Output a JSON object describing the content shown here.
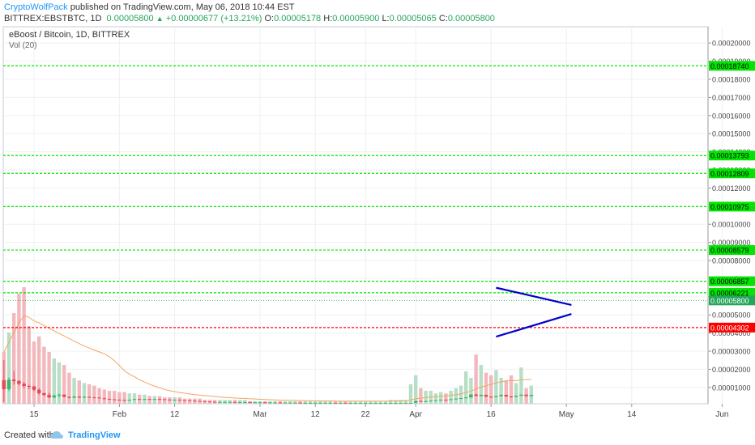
{
  "header": {
    "author": "CryptoWolfPack",
    "published": " published on TradingView.com, May 06, 2018 10:44 EST",
    "symbol": "BITTREX:EBSTBTC, 1D",
    "last": "0.00005800",
    "change": "+0.00000677 (+13.21%)",
    "o_label": "O:",
    "o_val": "0.00005178",
    "h_label": "H:",
    "h_val": "0.00005900",
    "l_label": "L:",
    "l_val": "0.00005065",
    "c_label": "C:",
    "c_val": "0.00005800"
  },
  "legend": {
    "title": "eBoost / Bitcoin, 1D, BITTREX",
    "volume": "Vol (20)"
  },
  "footer": {
    "created": "Created with",
    "brand": "TradingView"
  },
  "chart_data": {
    "type": "candlestick",
    "ylim": [
      1e-07,
      2.09e-05
    ],
    "y_ticks": [
      "0.00020000",
      "0.00019000",
      "0.00018000",
      "0.00017000",
      "0.00016000",
      "0.00015000",
      "0.00014000",
      "0.00013000",
      "0.00012000",
      "0.00011000",
      "0.00010000",
      "0.00009000",
      "0.00008000",
      "0.00007000",
      "0.00006000",
      "0.00005000",
      "0.00004000",
      "0.00003000",
      "0.00002000",
      "0.00001000"
    ],
    "y_tick_values": [
      0.0002,
      0.00019,
      0.00018,
      0.00017,
      0.00016,
      0.00015,
      0.00014,
      0.00013,
      0.00012,
      0.00011,
      0.0001,
      9e-05,
      8e-05,
      7e-05,
      6e-05,
      5e-05,
      4e-05,
      3e-05,
      2e-05,
      1e-05
    ],
    "x_ticks": [
      {
        "label": "15",
        "day": 0
      },
      {
        "label": "Feb",
        "day": 17
      },
      {
        "label": "12",
        "day": 28
      },
      {
        "label": "Mar",
        "day": 45
      },
      {
        "label": "12",
        "day": 56
      },
      {
        "label": "22",
        "day": 66
      },
      {
        "label": "Apr",
        "day": 76
      },
      {
        "label": "16",
        "day": 91
      },
      {
        "label": "May",
        "day": 106
      },
      {
        "label": "14",
        "day": 119
      },
      {
        "label": "Jun",
        "day": 137
      }
    ],
    "horizontal_levels": [
      {
        "value": 0.0001874,
        "label": "0.00018740",
        "color": "#00e600"
      },
      {
        "value": 0.00013793,
        "label": "0.00013793",
        "color": "#00e600"
      },
      {
        "value": 0.00012809,
        "label": "0.00012809",
        "color": "#00e600"
      },
      {
        "value": 0.00010975,
        "label": "0.00010975",
        "color": "#00e600"
      },
      {
        "value": 8.579e-05,
        "label": "0.00008579",
        "color": "#00e600"
      },
      {
        "value": 6.857e-05,
        "label": "0.00006857",
        "color": "#00e600"
      },
      {
        "value": 6.221e-05,
        "label": "0.00006221",
        "color": "#00e600"
      },
      {
        "value": 4.302e-05,
        "label": "0.00004302",
        "color": "#ff0000"
      }
    ],
    "last_price": {
      "value": 5.8e-05,
      "label": "0.00005800",
      "color": "#26a65b"
    },
    "triangle": {
      "upper": [
        [
          92,
          6.5e-05
        ],
        [
          107,
          5.55e-05
        ]
      ],
      "lower": [
        [
          92,
          3.8e-05
        ],
        [
          107,
          5.05e-05
        ]
      ],
      "color": "#0000cc"
    },
    "first_day": -6,
    "candles": [
      [
        1.4e-05,
        2.5e-05,
        2e-06,
        9e-06
      ],
      [
        9e-06,
        1.55e-05,
        8e-06,
        1.43e-05
      ],
      [
        1.43e-05,
        1.9e-05,
        1.15e-05,
        1.35e-05
      ],
      [
        1.35e-05,
        1.42e-05,
        1.12e-05,
        1.2e-05
      ],
      [
        1.2e-05,
        1.3e-05,
        9.5e-06,
        1.08e-05
      ],
      [
        1.08e-05,
        1.15e-05,
        9e-06,
        1.05e-05
      ],
      [
        1.05e-05,
        1.1e-05,
        8e-06,
        8.7e-06
      ],
      [
        8.7e-06,
        9.5e-06,
        6e-06,
        6.8e-06
      ],
      [
        6.8e-06,
        7.2e-06,
        5.5e-06,
        5.8e-06
      ],
      [
        5.8e-06,
        7e-06,
        4e-06,
        4.5e-06
      ],
      [
        4.5e-06,
        6e-06,
        4e-06,
        5.5e-06
      ],
      [
        5.5e-06,
        6.5e-06,
        4.5e-06,
        6e-06
      ],
      [
        6e-06,
        6.2e-06,
        4.5e-06,
        4.8e-06
      ],
      [
        4.8e-06,
        5e-06,
        4e-06,
        4.3e-06
      ],
      [
        4.3e-06,
        5.2e-06,
        4.1e-06,
        4.9e-06
      ],
      [
        4.9e-06,
        5.1e-06,
        4.2e-06,
        4.4e-06
      ],
      [
        4.4e-06,
        5e-06,
        4.2e-06,
        4.8e-06
      ],
      [
        4.8e-06,
        5e-06,
        4.3e-06,
        4.5e-06
      ],
      [
        4.5e-06,
        4.7e-06,
        4.2e-06,
        4.4e-06
      ],
      [
        4.4e-06,
        4.6e-06,
        3.9e-06,
        4e-06
      ],
      [
        4e-06,
        4.2e-06,
        3.6e-06,
        3.7e-06
      ],
      [
        3.7e-06,
        3.8e-06,
        3.3e-06,
        3.4e-06
      ],
      [
        3.4e-06,
        3.6e-06,
        3.1e-06,
        3.2e-06
      ],
      [
        3.2e-06,
        3.4e-06,
        3e-06,
        3.1e-06
      ],
      [
        3.1e-06,
        3.3e-06,
        2.9e-06,
        3e-06
      ],
      [
        3e-06,
        3.3e-06,
        2.9e-06,
        3.2e-06
      ],
      [
        3.2e-06,
        3.7e-06,
        3.1e-06,
        3.6e-06
      ],
      [
        3.6e-06,
        3.7e-06,
        3.2e-06,
        3.3e-06
      ],
      [
        3.3e-06,
        3.7e-06,
        3.2e-06,
        3.6e-06
      ],
      [
        3.6e-06,
        3.7e-06,
        3.3e-06,
        3.4e-06
      ],
      [
        3.4e-06,
        3.7e-06,
        3.3e-06,
        3.6e-06
      ],
      [
        3.6e-06,
        3.8e-06,
        3.4e-06,
        3.5e-06
      ],
      [
        3.5e-06,
        3.6e-06,
        3.2e-06,
        3.3e-06
      ],
      [
        3.3e-06,
        3.4e-06,
        3e-06,
        3.1e-06
      ],
      [
        3.1e-06,
        3.3e-06,
        3e-06,
        3.2e-06
      ],
      [
        3.2e-06,
        3.3e-06,
        2.9e-06,
        3e-06
      ],
      [
        3e-06,
        3.1e-06,
        2.8e-06,
        2.9e-06
      ],
      [
        2.9e-06,
        3e-06,
        2.6e-06,
        2.7e-06
      ],
      [
        2.7e-06,
        2.8e-06,
        2.4e-06,
        2.5e-06
      ],
      [
        2.5e-06,
        2.6e-06,
        2.3e-06,
        2.4e-06
      ],
      [
        2.4e-06,
        2.5e-06,
        2.1e-06,
        2.2e-06
      ],
      [
        2.2e-06,
        2.3e-06,
        2e-06,
        2.1e-06
      ],
      [
        2.1e-06,
        2.2e-06,
        1.9e-06,
        2e-06
      ],
      [
        2e-06,
        2.1e-06,
        1.9e-06,
        2e-06
      ],
      [
        2e-06,
        2.1e-06,
        1.9e-06,
        2e-06
      ],
      [
        2e-06,
        2.1e-06,
        1.9e-06,
        2e-06
      ],
      [
        2e-06,
        2.1e-06,
        1.8e-06,
        1.9e-06
      ],
      [
        1.9e-06,
        2e-06,
        1.8e-06,
        1.9e-06
      ],
      [
        1.9e-06,
        2e-06,
        1.8e-06,
        1.9e-06
      ],
      [
        1.9e-06,
        2e-06,
        1.8e-06,
        1.8e-06
      ],
      [
        1.8e-06,
        1.9e-06,
        1.7e-06,
        1.8e-06
      ],
      [
        1.8e-06,
        1.9e-06,
        1.7e-06,
        1.8e-06
      ],
      [
        1.8e-06,
        1.9e-06,
        1.7e-06,
        1.7e-06
      ],
      [
        1.7e-06,
        1.8e-06,
        1.6e-06,
        1.7e-06
      ],
      [
        1.7e-06,
        1.8e-06,
        1.6e-06,
        1.7e-06
      ],
      [
        1.7e-06,
        1.8e-06,
        1.6e-06,
        1.6e-06
      ],
      [
        1.6e-06,
        1.7e-06,
        1.6e-06,
        1.6e-06
      ],
      [
        1.6e-06,
        1.7e-06,
        1.5e-06,
        1.6e-06
      ],
      [
        1.6e-06,
        1.7e-06,
        1.5e-06,
        1.6e-06
      ],
      [
        1.6e-06,
        1.7e-06,
        1.5e-06,
        1.5e-06
      ],
      [
        1.5e-06,
        1.6e-06,
        1.4e-06,
        1.5e-06
      ],
      [
        1.5e-06,
        1.6e-06,
        1.4e-06,
        1.5e-06
      ],
      [
        1.5e-06,
        1.6e-06,
        1.4e-06,
        1.5e-06
      ],
      [
        1.5e-06,
        1.6e-06,
        1.4e-06,
        1.5e-06
      ],
      [
        1.5e-06,
        1.6e-06,
        1.4e-06,
        1.5e-06
      ],
      [
        1.5e-06,
        1.6e-06,
        1.4e-06,
        1.5e-06
      ],
      [
        1.5e-06,
        1.5e-06,
        1.4e-06,
        1.4e-06
      ],
      [
        1.4e-06,
        1.5e-06,
        1.4e-06,
        1.5e-06
      ],
      [
        1.5e-06,
        1.5e-06,
        1.4e-06,
        1.4e-06
      ],
      [
        1.4e-06,
        1.5e-06,
        1.3e-06,
        1.4e-06
      ],
      [
        1.4e-06,
        1.5e-06,
        1.3e-06,
        1.4e-06
      ],
      [
        1.4e-06,
        1.5e-06,
        1.3e-06,
        1.4e-06
      ],
      [
        1.4e-06,
        1.5e-06,
        1.3e-06,
        1.4e-06
      ],
      [
        1.4e-06,
        1.5e-06,
        1.3e-06,
        1.4e-06
      ],
      [
        1.4e-06,
        1.5e-06,
        1.3e-06,
        1.4e-06
      ],
      [
        1.4e-06,
        1.5e-06,
        1.3e-06,
        1.4e-06
      ],
      [
        1.4e-06,
        1.5e-06,
        1.3e-06,
        1.4e-06
      ],
      [
        1.4e-06,
        1.5e-06,
        1.3e-06,
        1.4e-06
      ],
      [
        1.4e-06,
        1.5e-06,
        1.3e-06,
        1.4e-06
      ],
      [
        1.4e-06,
        1.5e-06,
        1.3e-06,
        1.4e-06
      ],
      [
        1.4e-06,
        1.5e-06,
        1.3e-06,
        1.4e-06
      ],
      [
        1.4e-06,
        1.5e-06,
        1.3e-06,
        1.5e-06
      ],
      [
        1.5e-06,
        2.6e-06,
        1.4e-06,
        2.5e-06
      ],
      [
        2.5e-06,
        2.7e-06,
        2.1e-06,
        2.2e-06
      ],
      [
        2.2e-06,
        2.6e-06,
        2.1e-06,
        2.4e-06
      ],
      [
        2.4e-06,
        2.8e-06,
        2.3e-06,
        2.7e-06
      ],
      [
        2.7e-06,
        3e-06,
        2.6e-06,
        2.9e-06
      ],
      [
        2.9e-06,
        3.3e-06,
        2.8e-06,
        3.2e-06
      ],
      [
        3.2e-06,
        3.4e-06,
        3e-06,
        3.1e-06
      ],
      [
        3.1e-06,
        3.6e-06,
        3e-06,
        3.5e-06
      ],
      [
        3.5e-06,
        3.9e-06,
        3.4e-06,
        3.8e-06
      ],
      [
        3.8e-06,
        4.2e-06,
        3.7e-06,
        4.1e-06
      ],
      [
        4.1e-06,
        4.6e-06,
        4e-06,
        4.5e-06
      ],
      [
        4.5e-06,
        6.2e-06,
        4.4e-06,
        6.1e-06
      ],
      [
        6.1e-06,
        6.5e-06,
        5.2e-06,
        5.3e-06
      ],
      [
        5.3e-06,
        6.1e-06,
        5e-06,
        5.9e-06
      ],
      [
        5.9e-06,
        6e-06,
        4.7e-06,
        4.9e-06
      ],
      [
        4.9e-06,
        5e-06,
        4.2e-06,
        4.7e-06
      ],
      [
        4.7e-06,
        5.3e-06,
        4.5e-06,
        5.2e-06
      ],
      [
        5.2e-06,
        6.1e-06,
        5.1e-06,
        5.9e-06
      ],
      [
        5.9e-06,
        6e-06,
        4.8e-06,
        5e-06
      ],
      [
        5e-06,
        5.2e-06,
        4.3e-06,
        4.8e-06
      ],
      [
        4.8e-06,
        5.5e-06,
        4.7e-06,
        5.4e-06
      ],
      [
        5.4e-06,
        6.1e-06,
        5.3e-06,
        6e-06
      ],
      [
        6e-06,
        6.1e-06,
        5.1e-06,
        5.2e-06
      ],
      [
        5.2e-06,
        5.9e-06,
        5e-06,
        5.8e-06
      ]
    ],
    "volumes": [
      40,
      55,
      70,
      85,
      90,
      60,
      48,
      52,
      44,
      40,
      35,
      32,
      30,
      24,
      20,
      18,
      16,
      15,
      14,
      12,
      11,
      10,
      10,
      9,
      9,
      8,
      8,
      7,
      7,
      6,
      6,
      6,
      5,
      5,
      5,
      5,
      4,
      4,
      4,
      4,
      3,
      3,
      3,
      3,
      3,
      3,
      3,
      3,
      3,
      2,
      2,
      2,
      2,
      2,
      2,
      2,
      2,
      2,
      2,
      2,
      2,
      2,
      2,
      2,
      2,
      2,
      2,
      2,
      2,
      2,
      2,
      2,
      2,
      2,
      2,
      2,
      2,
      3,
      3,
      3,
      3,
      15,
      22,
      12,
      10,
      10,
      8,
      9,
      8,
      10,
      12,
      14,
      25,
      20,
      38,
      30,
      24,
      22,
      26,
      20,
      18,
      22,
      16,
      28,
      12,
      14
    ]
  }
}
